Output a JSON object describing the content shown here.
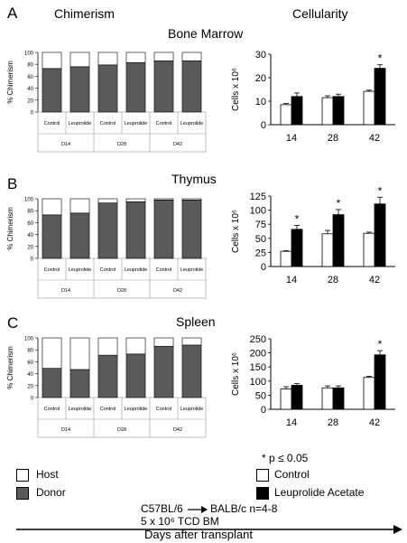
{
  "headers": {
    "chimerism": "Chimerism",
    "cellularity": "Cellularity"
  },
  "panels": [
    {
      "letter": "A",
      "organ": "Bone Marrow"
    },
    {
      "letter": "B",
      "organ": "Thymus"
    },
    {
      "letter": "C",
      "organ": "Spleen"
    }
  ],
  "legend": {
    "host": "Host",
    "donor": "Donor",
    "control": "Control",
    "leuprolide": "Leuprolide Acetate",
    "significance": "*  p ≤ 0.05"
  },
  "footnote": {
    "line1_a": "C57BL/6",
    "line1_b": "BALB/c   n=4-8",
    "line2": "5 x 10⁶ TCD BM"
  },
  "x_axis_title": "Days after transplant",
  "colors": {
    "host": "#ffffff",
    "donor": "#5a5a5a",
    "control": "#ffffff",
    "leuprolide": "#000000"
  },
  "chart_data": [
    {
      "type": "bar",
      "stacked": true,
      "panel": "A",
      "ylabel": "% Chimerism",
      "ylim": [
        0,
        100
      ],
      "yticks": [
        0,
        20,
        40,
        60,
        80,
        100
      ],
      "categories": [
        "Control",
        "Leuprolide",
        "Control",
        "Leuprolide",
        "Control",
        "Leuprolide"
      ],
      "groups": [
        "D14",
        "D28",
        "D42"
      ],
      "series": [
        {
          "name": "Donor",
          "values": [
            73,
            76,
            79,
            83,
            86,
            86
          ]
        },
        {
          "name": "Host",
          "values": [
            27,
            24,
            21,
            17,
            14,
            14
          ]
        }
      ]
    },
    {
      "type": "bar",
      "panel": "A",
      "ylabel": "Cells x 10⁶",
      "ylim": [
        0,
        30
      ],
      "yticks": [
        0,
        10,
        20,
        30
      ],
      "categories": [
        "14",
        "28",
        "42"
      ],
      "series": [
        {
          "name": "Control",
          "values": [
            8.5,
            11.5,
            14.2
          ],
          "errors": [
            0.5,
            0.8,
            0.5
          ]
        },
        {
          "name": "Leuprolide Acetate",
          "values": [
            12,
            12,
            24
          ],
          "errors": [
            1.5,
            1,
            1.5
          ]
        }
      ],
      "significant": [
        "42"
      ]
    },
    {
      "type": "bar",
      "stacked": true,
      "panel": "B",
      "ylabel": "% Chimerism",
      "ylim": [
        0,
        100
      ],
      "yticks": [
        0,
        20,
        40,
        60,
        80,
        100
      ],
      "categories": [
        "Control",
        "Leuprolide",
        "Control",
        "Leuprolide",
        "Control",
        "Leuprolide"
      ],
      "groups": [
        "D14",
        "D28",
        "D42"
      ],
      "series": [
        {
          "name": "Donor",
          "values": [
            73,
            76,
            93,
            95,
            98,
            98
          ]
        },
        {
          "name": "Host",
          "values": [
            27,
            24,
            7,
            5,
            2,
            2
          ]
        }
      ]
    },
    {
      "type": "bar",
      "panel": "B",
      "ylabel": "Cells x 10⁶",
      "ylim": [
        0,
        125
      ],
      "yticks": [
        0,
        25,
        50,
        75,
        100,
        125
      ],
      "categories": [
        "14",
        "28",
        "42"
      ],
      "series": [
        {
          "name": "Control",
          "values": [
            27,
            58,
            59
          ],
          "errors": [
            1,
            6,
            2
          ]
        },
        {
          "name": "Leuprolide Acetate",
          "values": [
            66,
            92,
            111
          ],
          "errors": [
            7,
            9,
            12
          ]
        }
      ],
      "significant": [
        "14",
        "28",
        "42"
      ]
    },
    {
      "type": "bar",
      "stacked": true,
      "panel": "C",
      "ylabel": "% Chimerism",
      "ylim": [
        0,
        100
      ],
      "yticks": [
        0,
        20,
        40,
        60,
        80,
        100
      ],
      "categories": [
        "Control",
        "Leuprolide",
        "Control",
        "Leuprolide",
        "Control",
        "Leuprolide"
      ],
      "groups": [
        "D14",
        "D28",
        "D42"
      ],
      "series": [
        {
          "name": "Donor",
          "values": [
            49,
            47,
            71,
            73,
            86,
            88
          ]
        },
        {
          "name": "Host",
          "values": [
            51,
            53,
            29,
            27,
            14,
            12
          ]
        }
      ]
    },
    {
      "type": "bar",
      "panel": "C",
      "ylabel": "Cells x 10⁶",
      "ylim": [
        0,
        250
      ],
      "yticks": [
        0,
        50,
        100,
        150,
        200,
        250
      ],
      "categories": [
        "14",
        "28",
        "42"
      ],
      "series": [
        {
          "name": "Control",
          "values": [
            72,
            76,
            113
          ],
          "errors": [
            8,
            7,
            4
          ]
        },
        {
          "name": "Leuprolide Acetate",
          "values": [
            85,
            76,
            193
          ],
          "errors": [
            6,
            7,
            15
          ]
        }
      ],
      "significant": [
        "42"
      ]
    }
  ]
}
